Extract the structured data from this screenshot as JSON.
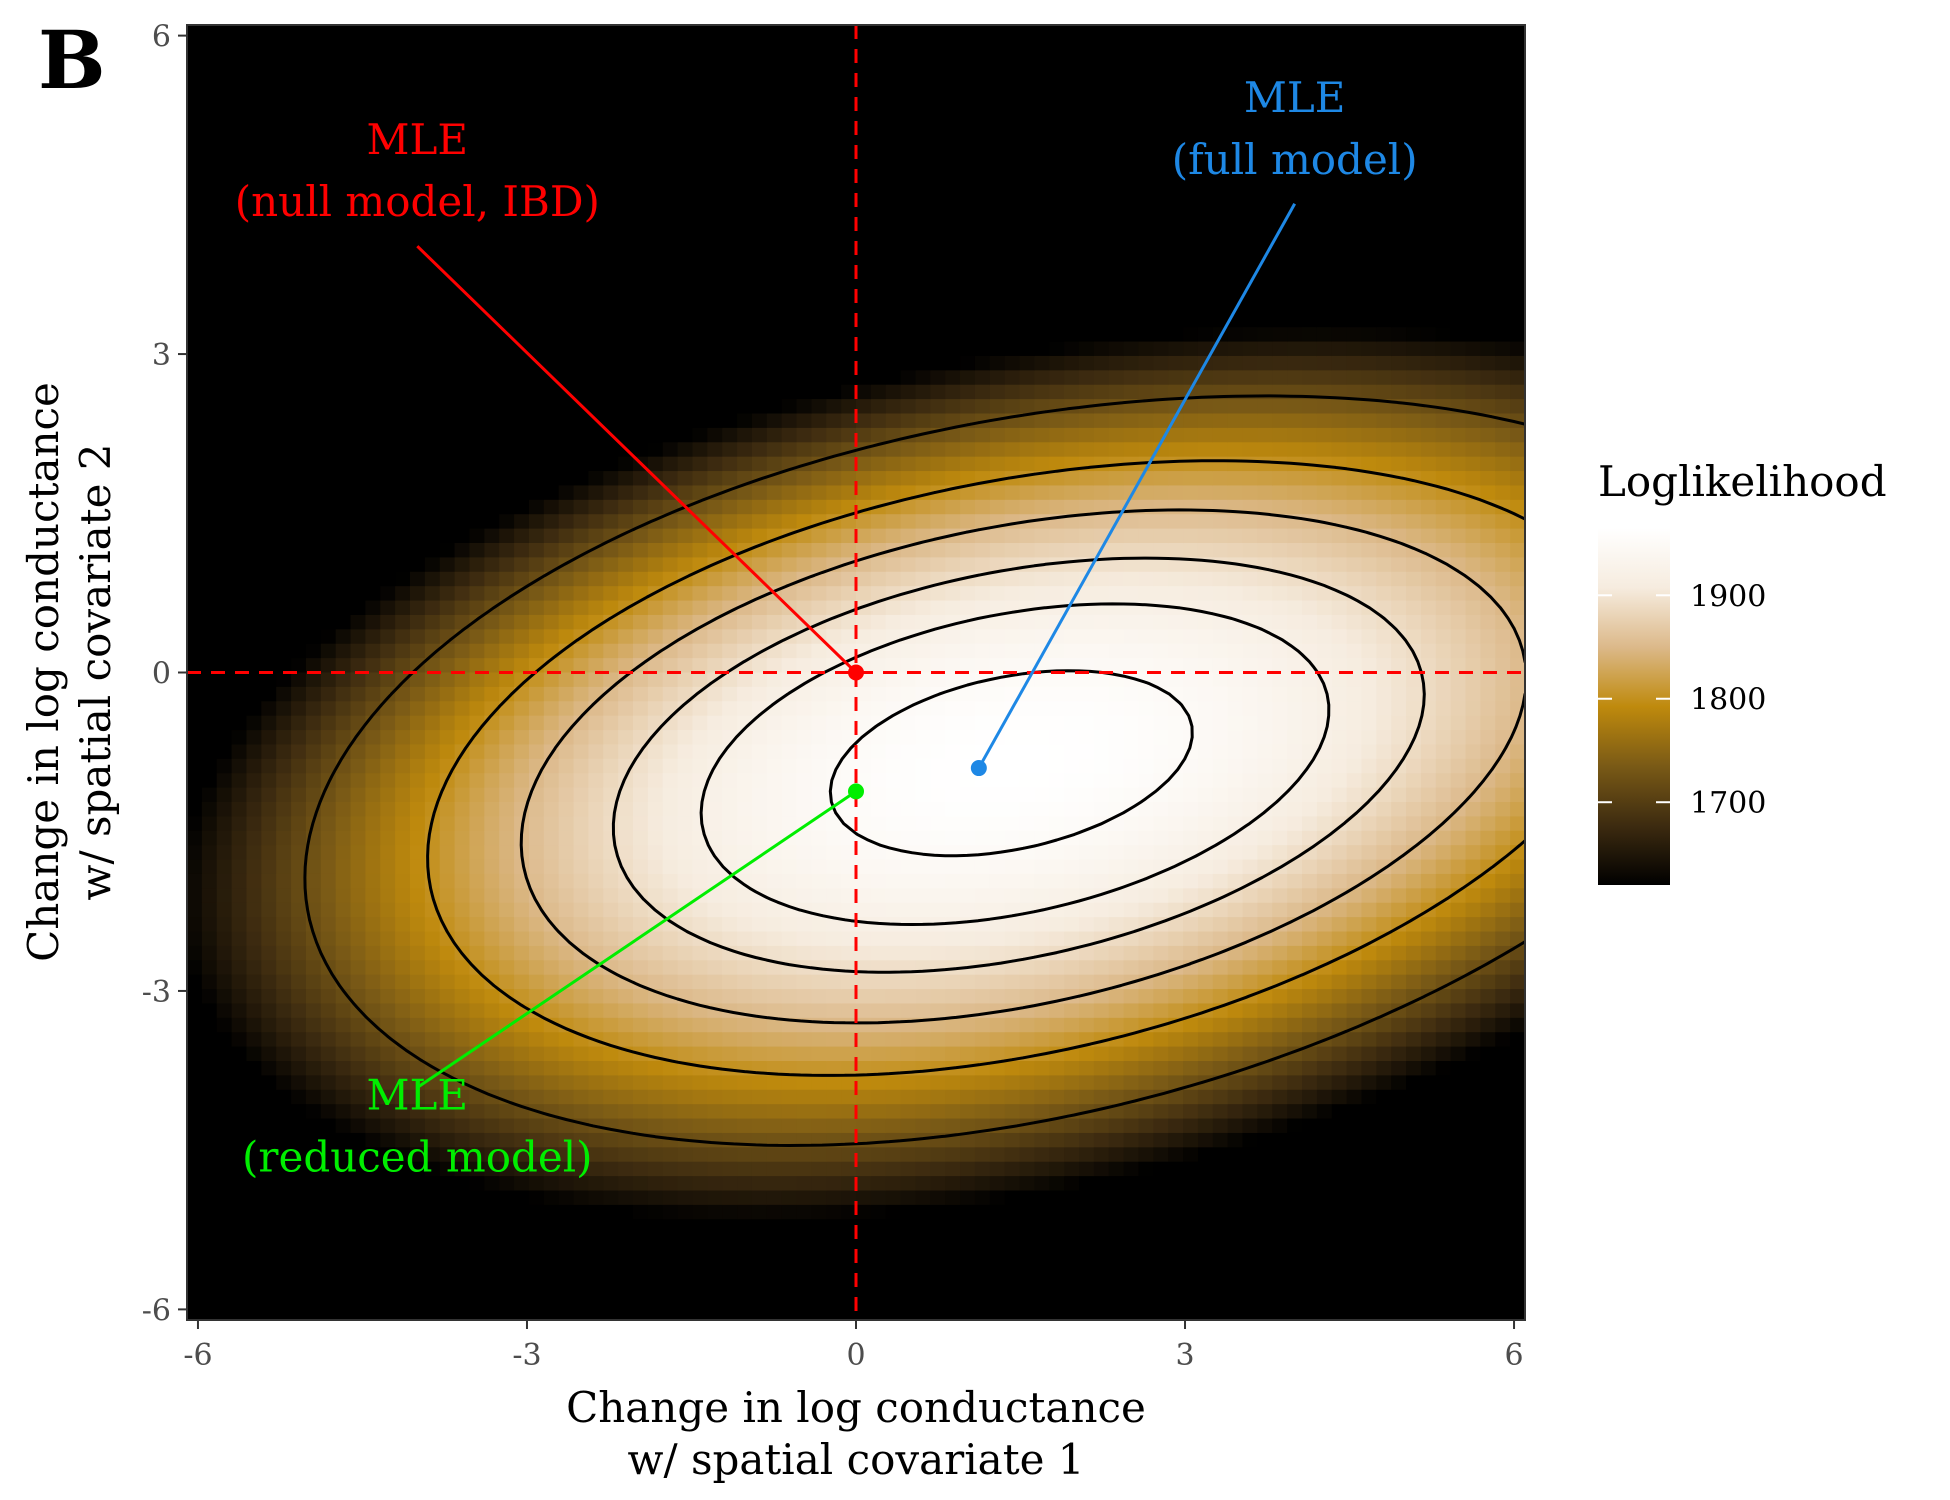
{
  "panel_label": "B",
  "chart_data": {
    "type": "heatmap",
    "title": "",
    "xlabel": [
      "Change in log conductance",
      "w/ spatial covariate 1"
    ],
    "ylabel": [
      "Change in log conductance",
      "w/ spatial covariate 2"
    ],
    "xlim": [
      -6.1,
      6.1
    ],
    "ylim": [
      -6.1,
      6.1
    ],
    "x_ticks": [
      -6,
      -3,
      0,
      3,
      6
    ],
    "y_ticks": [
      -6,
      -3,
      0,
      3,
      6
    ],
    "tick_labels": [
      "-6",
      "-3",
      "0",
      "3",
      "6"
    ],
    "grid": false,
    "legend": {
      "title": "Loglikelihood",
      "placement": "right",
      "range": [
        1620,
        1965
      ],
      "ticks": [
        1700,
        1800,
        1900
      ],
      "tick_labels": [
        "1700",
        "1800",
        "1900"
      ],
      "colors": [
        "#000000",
        "#3d2b10",
        "#7a5a16",
        "#bf8a0d",
        "#dcb98a",
        "#f6ecdf",
        "#ffffff"
      ]
    },
    "contour_levels": [
      1720,
      1800,
      1850,
      1890,
      1920,
      1950
    ],
    "reference_lines": [
      {
        "axis": "x",
        "value": 0,
        "color": "#ff0000",
        "style": "dashed"
      },
      {
        "axis": "y",
        "value": 0,
        "color": "#ff0000",
        "style": "dashed"
      }
    ],
    "points": [
      {
        "label": [
          "MLE",
          "(null model, IBD)"
        ],
        "x": 0,
        "y": 0,
        "color": "#ff0000",
        "label_x": -4.0,
        "label_y": 4.6
      },
      {
        "label": [
          "MLE",
          "(full model)"
        ],
        "x": 1.12,
        "y": -0.9,
        "color": "#1e88e5",
        "label_x": 4.0,
        "label_y": 5.0
      },
      {
        "label": [
          "MLE",
          "(reduced model)"
        ],
        "x": 0,
        "y": -1.12,
        "color": "#00ee00",
        "label_x": -4.0,
        "label_y": -4.4
      }
    ]
  }
}
